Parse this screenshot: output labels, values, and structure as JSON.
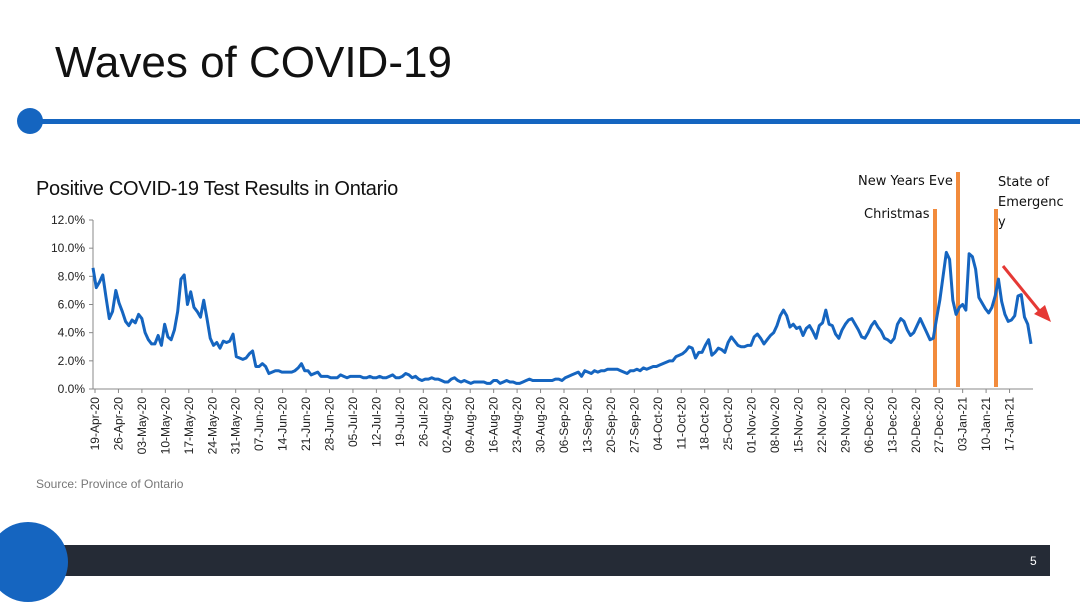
{
  "slide": {
    "title": "Waves of COVID-19",
    "source": "Source: Province of Ontario",
    "page_number": "5"
  },
  "colors": {
    "accent": "#1565c0",
    "line": "#1565c0",
    "event_marker": "#f28b3c",
    "trend_arrow": "#e53935",
    "footer": "#252b36"
  },
  "chart_data": {
    "type": "line",
    "title": "Positive COVID-19 Test Results in Ontario",
    "xlabel": "",
    "ylabel": "",
    "ylim": [
      0,
      12
    ],
    "y_ticks": [
      "0.0%",
      "2.0%",
      "4.0%",
      "6.0%",
      "8.0%",
      "10.0%",
      "12.0%"
    ],
    "x_ticks": [
      "19-Apr-20",
      "26-Apr-20",
      "03-May-20",
      "10-May-20",
      "17-May-20",
      "24-May-20",
      "31-May-20",
      "07-Jun-20",
      "14-Jun-20",
      "21-Jun-20",
      "28-Jun-20",
      "05-Jul-20",
      "12-Jul-20",
      "19-Jul-20",
      "26-Jul-20",
      "02-Aug-20",
      "09-Aug-20",
      "16-Aug-20",
      "23-Aug-20",
      "30-Aug-20",
      "06-Sep-20",
      "13-Sep-20",
      "20-Sep-20",
      "27-Sep-20",
      "04-Oct-20",
      "11-Oct-20",
      "18-Oct-20",
      "25-Oct-20",
      "01-Nov-20",
      "08-Nov-20",
      "15-Nov-20",
      "22-Nov-20",
      "29-Nov-20",
      "06-Dec-20",
      "13-Dec-20",
      "20-Dec-20",
      "27-Dec-20",
      "03-Jan-21",
      "10-Jan-21",
      "17-Jan-21"
    ],
    "grid": false,
    "series": [
      {
        "values": [
          8.6,
          7.2,
          7.6,
          8.1,
          6.5,
          5.0,
          5.5,
          7.0,
          6.1,
          5.5,
          4.8,
          4.5,
          4.9,
          4.7,
          5.3,
          5.0,
          4.0,
          3.5,
          3.2,
          3.2,
          3.8,
          3.1,
          4.6,
          3.7,
          3.5,
          4.2,
          5.5,
          7.8,
          8.1,
          6.0,
          6.9,
          5.8,
          5.5,
          5.1,
          6.3,
          5.0,
          3.6,
          3.1,
          3.3,
          2.9,
          3.4,
          3.3,
          3.4,
          3.9,
          2.3,
          2.2,
          2.1,
          2.2,
          2.5,
          2.7,
          1.6,
          1.6,
          1.8,
          1.6,
          1.1,
          1.2,
          1.3,
          1.3,
          1.2,
          1.2,
          1.2,
          1.2,
          1.3,
          1.5,
          1.8,
          1.3,
          1.3,
          1.0,
          1.1,
          1.2,
          0.9,
          0.9,
          0.9,
          0.8,
          0.8,
          0.8,
          1.0,
          0.9,
          0.8,
          0.9,
          0.9,
          0.9,
          0.9,
          0.8,
          0.8,
          0.9,
          0.8,
          0.8,
          0.9,
          0.8,
          0.8,
          0.9,
          1.0,
          0.8,
          0.8,
          0.9,
          1.1,
          1.0,
          0.8,
          0.9,
          0.7,
          0.6,
          0.7,
          0.7,
          0.8,
          0.7,
          0.7,
          0.6,
          0.5,
          0.5,
          0.7,
          0.8,
          0.6,
          0.5,
          0.6,
          0.5,
          0.4,
          0.5,
          0.5,
          0.5,
          0.5,
          0.4,
          0.4,
          0.6,
          0.6,
          0.4,
          0.5,
          0.6,
          0.5,
          0.5,
          0.4,
          0.4,
          0.5,
          0.6,
          0.7,
          0.6,
          0.6,
          0.6,
          0.6,
          0.6,
          0.6,
          0.6,
          0.7,
          0.7,
          0.6,
          0.8,
          0.9,
          1.0,
          1.1,
          1.2,
          0.9,
          1.3,
          1.2,
          1.1,
          1.3,
          1.2,
          1.3,
          1.3,
          1.4,
          1.4,
          1.4,
          1.4,
          1.3,
          1.2,
          1.1,
          1.3,
          1.3,
          1.4,
          1.3,
          1.5,
          1.4,
          1.5,
          1.6,
          1.6,
          1.7,
          1.8,
          1.9,
          2.0,
          2.0,
          2.3,
          2.4,
          2.5,
          2.7,
          3.0,
          2.9,
          2.2,
          2.6,
          2.6,
          3.1,
          3.5,
          2.4,
          2.6,
          2.9,
          2.8,
          2.6,
          3.3,
          3.7,
          3.4,
          3.1,
          3.0,
          3.0,
          3.1,
          3.1,
          3.7,
          3.9,
          3.6,
          3.2,
          3.5,
          3.8,
          4.0,
          4.5,
          5.2,
          5.6,
          5.2,
          4.4,
          4.6,
          4.3,
          4.4,
          3.8,
          4.3,
          4.5,
          4.1,
          3.6,
          4.5,
          4.7,
          5.6,
          4.6,
          4.5,
          3.9,
          3.6,
          4.2,
          4.6,
          4.9,
          5.0,
          4.6,
          4.2,
          3.7,
          3.6,
          4.0,
          4.5,
          4.8,
          4.4,
          4.1,
          3.6,
          3.5,
          3.3,
          3.6,
          4.6,
          5.0,
          4.8,
          4.2,
          3.8,
          4.0,
          4.5,
          5.0,
          4.5,
          4.0,
          3.5,
          3.6,
          5.0,
          6.3,
          8.0,
          9.7,
          9.2,
          6.3,
          5.3,
          5.8,
          6.0,
          5.6,
          9.6,
          9.4,
          8.5,
          6.5,
          6.1,
          5.7,
          5.4,
          5.8,
          6.6,
          7.8,
          6.2,
          5.3,
          4.8,
          4.9,
          5.2,
          6.6,
          6.7,
          5.1,
          4.6,
          3.2
        ]
      }
    ]
  },
  "annotations": {
    "christmas": "Christmas",
    "new_years_eve": "New Years Eve",
    "state_of_emergency_line1": "State of",
    "state_of_emergency_line2": "Emergenc",
    "state_of_emergency_line3": "y"
  }
}
